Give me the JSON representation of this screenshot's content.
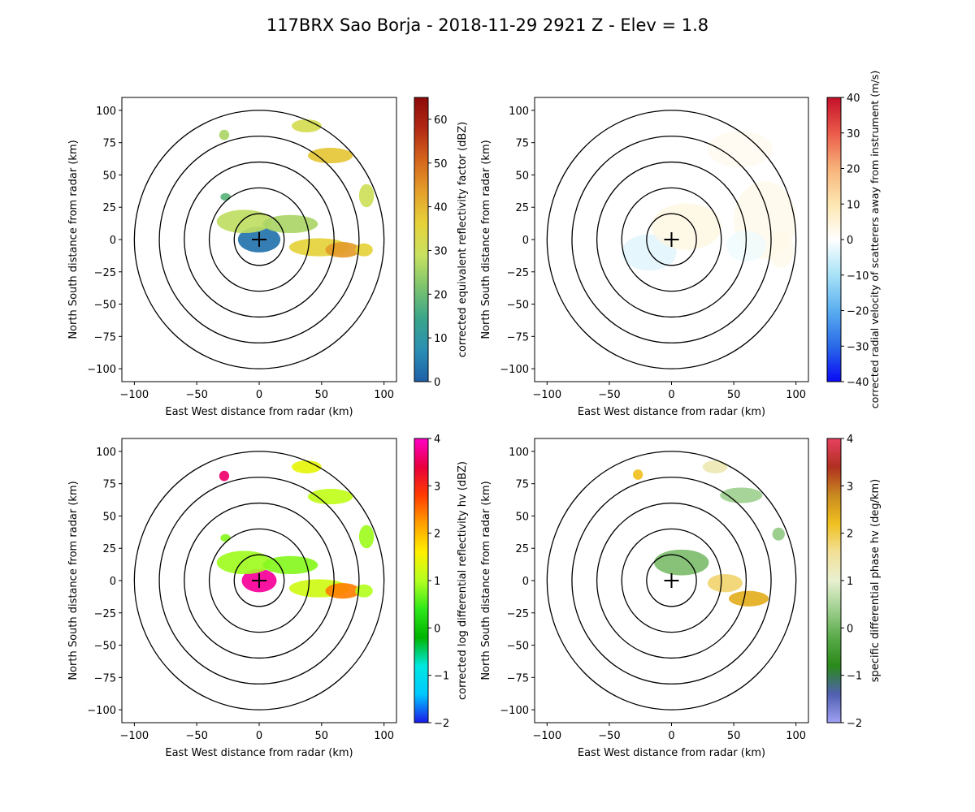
{
  "title": "117BRX Sao Borja - 2018-11-29 2921 Z -  Elev = 1.8",
  "chart_data": [
    {
      "type": "heatmap",
      "field": "reflectivity",
      "xlabel": "East West distance from radar (km)",
      "ylabel": "North South distance from radar (km)",
      "xlim": [
        -110,
        110
      ],
      "ylim": [
        -110,
        110
      ],
      "xticks": [
        "−100",
        "−50",
        "0",
        "50",
        "100"
      ],
      "yticks": [
        "100",
        "75",
        "50",
        "25",
        "0",
        "−25",
        "−50",
        "−75",
        "−100"
      ],
      "range_rings_km": [
        20,
        40,
        60,
        80,
        100
      ],
      "colorbar": {
        "label": "corrected equivalent reflectivity factor (dBZ)",
        "range": [
          0,
          65
        ],
        "ticks": [
          "0",
          "10",
          "20",
          "30",
          "40",
          "50",
          "60"
        ],
        "colors": [
          "#1f5fa8",
          "#2a8fb4",
          "#3aa58a",
          "#7cc46e",
          "#c8e160",
          "#e6d23a",
          "#e4a02a",
          "#d5661c",
          "#b32a14",
          "#8c0a0a"
        ]
      },
      "echoes": [
        {
          "x": 0,
          "y": 0,
          "rx": 17,
          "ry": 10,
          "value": 3
        },
        {
          "x": -12,
          "y": 14,
          "rx": 22,
          "ry": 9,
          "value": 28
        },
        {
          "x": 25,
          "y": 12,
          "rx": 22,
          "ry": 7,
          "value": 26
        },
        {
          "x": 48,
          "y": -6,
          "rx": 24,
          "ry": 7,
          "value": 36
        },
        {
          "x": 67,
          "y": -8,
          "rx": 14,
          "ry": 6,
          "value": 44
        },
        {
          "x": 84,
          "y": -8,
          "rx": 7,
          "ry": 5,
          "value": 36
        },
        {
          "x": 57,
          "y": 65,
          "rx": 18,
          "ry": 6,
          "value": 38
        },
        {
          "x": 38,
          "y": 88,
          "rx": 12,
          "ry": 5,
          "value": 32
        },
        {
          "x": 86,
          "y": 34,
          "rx": 6,
          "ry": 9,
          "value": 30
        },
        {
          "x": -28,
          "y": 81,
          "rx": 4,
          "ry": 4,
          "value": 26
        },
        {
          "x": -27,
          "y": 33,
          "rx": 4,
          "ry": 3,
          "value": 18
        }
      ]
    },
    {
      "type": "heatmap",
      "field": "velocity",
      "xlabel": "East West distance from radar (km)",
      "ylabel": "North South distance from radar (km)",
      "xlim": [
        -110,
        110
      ],
      "ylim": [
        -110,
        110
      ],
      "xticks": [
        "−100",
        "−50",
        "0",
        "50",
        "100"
      ],
      "yticks": [
        "100",
        "75",
        "50",
        "25",
        "0",
        "−25",
        "−50",
        "−75",
        "−100"
      ],
      "range_rings_km": [
        20,
        40,
        60,
        80,
        100
      ],
      "colorbar": {
        "label": "corrected radial velocity of scatterers away from instrument (m/s)",
        "range": [
          -40,
          40
        ],
        "ticks": [
          "−40",
          "−30",
          "−20",
          "−10",
          "0",
          "10",
          "20",
          "30",
          "40"
        ],
        "colors": [
          "#0a0af5",
          "#2a6ae8",
          "#5aaef0",
          "#a8e2f7",
          "#ffffff",
          "#fde6b0",
          "#f7b27a",
          "#eb5a4a",
          "#c4102a"
        ]
      },
      "echoes": [
        {
          "x": -18,
          "y": -10,
          "rx": 22,
          "ry": 14,
          "value": -4
        },
        {
          "x": 12,
          "y": 10,
          "rx": 28,
          "ry": 18,
          "value": 4
        },
        {
          "x": 75,
          "y": 15,
          "rx": 25,
          "ry": 30,
          "value": 3
        },
        {
          "x": 55,
          "y": 70,
          "rx": 26,
          "ry": 14,
          "value": 2
        },
        {
          "x": 88,
          "y": -8,
          "rx": 10,
          "ry": 14,
          "value": 3
        },
        {
          "x": 60,
          "y": -5,
          "rx": 16,
          "ry": 12,
          "value": -2
        }
      ]
    },
    {
      "type": "heatmap",
      "field": "differential_reflectivity",
      "xlabel": "East West distance from radar (km)",
      "ylabel": "North South distance from radar (km)",
      "xlim": [
        -110,
        110
      ],
      "ylim": [
        -110,
        110
      ],
      "xticks": [
        "−100",
        "−50",
        "0",
        "50",
        "100"
      ],
      "yticks": [
        "100",
        "75",
        "50",
        "25",
        "0",
        "−25",
        "−50",
        "−75",
        "−100"
      ],
      "range_rings_km": [
        20,
        40,
        60,
        80,
        100
      ],
      "colorbar": {
        "label": "corrected log differential reflectivity hv (dBZ)",
        "range": [
          -2,
          4
        ],
        "ticks": [
          "−2",
          "−1",
          "0",
          "1",
          "2",
          "3",
          "4"
        ],
        "colors": [
          "#1a1ae8",
          "#00c8ff",
          "#00e8e0",
          "#00b400",
          "#2ee81a",
          "#b4ff20",
          "#fff000",
          "#ffa000",
          "#ff3c00",
          "#e8003c",
          "#ff00c8"
        ]
      },
      "echoes": [
        {
          "x": 0,
          "y": 0,
          "rx": 14,
          "ry": 9,
          "value": 3.8
        },
        {
          "x": -12,
          "y": 14,
          "rx": 22,
          "ry": 9,
          "value": 0.9
        },
        {
          "x": 25,
          "y": 12,
          "rx": 22,
          "ry": 7,
          "value": 0.8
        },
        {
          "x": 48,
          "y": -6,
          "rx": 24,
          "ry": 7,
          "value": 1.2
        },
        {
          "x": 67,
          "y": -8,
          "rx": 14,
          "ry": 6,
          "value": 2.4
        },
        {
          "x": 84,
          "y": -8,
          "rx": 7,
          "ry": 5,
          "value": 1.0
        },
        {
          "x": 57,
          "y": 65,
          "rx": 18,
          "ry": 6,
          "value": 1.1
        },
        {
          "x": 38,
          "y": 88,
          "rx": 12,
          "ry": 5,
          "value": 1.4
        },
        {
          "x": 86,
          "y": 34,
          "rx": 6,
          "ry": 9,
          "value": 0.9
        },
        {
          "x": -28,
          "y": 81,
          "rx": 4,
          "ry": 4,
          "value": 3.6
        },
        {
          "x": -27,
          "y": 33,
          "rx": 4,
          "ry": 3,
          "value": 0.8
        }
      ]
    },
    {
      "type": "heatmap",
      "field": "specific_differential_phase",
      "xlabel": "East West distance from radar (km)",
      "ylabel": "North South distance from radar (km)",
      "xlim": [
        -110,
        110
      ],
      "ylim": [
        -110,
        110
      ],
      "xticks": [
        "−100",
        "−50",
        "0",
        "50",
        "100"
      ],
      "yticks": [
        "100",
        "75",
        "50",
        "25",
        "0",
        "−25",
        "−50",
        "−75",
        "−100"
      ],
      "range_rings_km": [
        20,
        40,
        60,
        80,
        100
      ],
      "colorbar": {
        "label": "specific differential phase hv (deg/km)",
        "range": [
          -2,
          4
        ],
        "ticks": [
          "−2",
          "−1",
          "0",
          "1",
          "2",
          "3",
          "4"
        ],
        "colors": [
          "#a0a0f4",
          "#5060b0",
          "#2a8a1a",
          "#5aaa4a",
          "#a0d090",
          "#e8f0d0",
          "#f2e098",
          "#f0c020",
          "#c88a20",
          "#b03020",
          "#e84060"
        ]
      },
      "echoes": [
        {
          "x": 8,
          "y": 14,
          "rx": 22,
          "ry": 10,
          "value": 0.1
        },
        {
          "x": 43,
          "y": -2,
          "rx": 14,
          "ry": 7,
          "value": 1.8
        },
        {
          "x": 62,
          "y": -14,
          "rx": 16,
          "ry": 6,
          "value": 2.4
        },
        {
          "x": 56,
          "y": 66,
          "rx": 17,
          "ry": 6,
          "value": 0.4
        },
        {
          "x": 35,
          "y": 88,
          "rx": 10,
          "ry": 5,
          "value": 1.3
        },
        {
          "x": 86,
          "y": 36,
          "rx": 5,
          "ry": 5,
          "value": 0.3
        },
        {
          "x": -27,
          "y": 82,
          "rx": 4,
          "ry": 4,
          "value": 2.2
        }
      ]
    }
  ]
}
